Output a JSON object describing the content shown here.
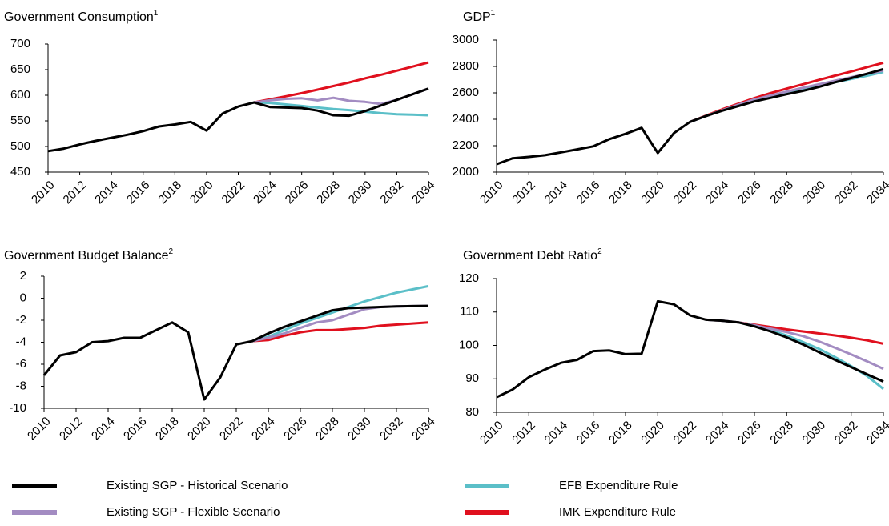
{
  "chart_data": [
    {
      "type": "line",
      "title": "Government Consumption",
      "title_footnote": "1",
      "x": [
        2010,
        2011,
        2012,
        2013,
        2014,
        2015,
        2016,
        2017,
        2018,
        2019,
        2020,
        2021,
        2022,
        2023,
        2024,
        2025,
        2026,
        2027,
        2028,
        2029,
        2030,
        2031,
        2032,
        2033,
        2034
      ],
      "xlim": [
        2010,
        2034
      ],
      "xticks": [
        2010,
        2012,
        2014,
        2016,
        2018,
        2020,
        2022,
        2024,
        2026,
        2028,
        2030,
        2032,
        2034
      ],
      "ylim": [
        450,
        700
      ],
      "yticks": [
        450,
        500,
        550,
        600,
        650,
        700
      ],
      "series": [
        {
          "name": "Existing SGP - Historical Scenario",
          "color": "#000000",
          "values": [
            491,
            496,
            504,
            511,
            517,
            523,
            530,
            539,
            543,
            548,
            531,
            564,
            578,
            586,
            577,
            576,
            575,
            570,
            561,
            560,
            569,
            580,
            591,
            602,
            613
          ]
        },
        {
          "name": "Existing SGP - Flexible Scenario",
          "color": "#a38cc2",
          "values": [
            null,
            null,
            null,
            null,
            null,
            null,
            null,
            null,
            null,
            null,
            null,
            null,
            null,
            586,
            590,
            593,
            594,
            590,
            595,
            589,
            587,
            583,
            591,
            602,
            613
          ]
        },
        {
          "name": "EFB Expenditure Rule",
          "color": "#5bbfc8",
          "values": [
            null,
            null,
            null,
            null,
            null,
            null,
            null,
            null,
            null,
            null,
            null,
            null,
            null,
            586,
            585,
            582,
            579,
            576,
            573,
            571,
            568,
            565,
            563,
            562,
            561
          ]
        },
        {
          "name": "IMK Expenditure Rule",
          "color": "#e0101e",
          "values": [
            null,
            null,
            null,
            null,
            null,
            null,
            null,
            null,
            null,
            null,
            null,
            null,
            null,
            586,
            592,
            598,
            604,
            611,
            618,
            625,
            633,
            640,
            648,
            656,
            664
          ]
        }
      ]
    },
    {
      "type": "line",
      "title": "GDP",
      "title_footnote": "1",
      "x": [
        2010,
        2011,
        2012,
        2013,
        2014,
        2015,
        2016,
        2017,
        2018,
        2019,
        2020,
        2021,
        2022,
        2023,
        2024,
        2025,
        2026,
        2027,
        2028,
        2029,
        2030,
        2031,
        2032,
        2033,
        2034
      ],
      "xlim": [
        2010,
        2034
      ],
      "xticks": [
        2010,
        2012,
        2014,
        2016,
        2018,
        2020,
        2022,
        2024,
        2026,
        2028,
        2030,
        2032,
        2034
      ],
      "ylim": [
        2000,
        3000
      ],
      "yticks": [
        2000,
        2200,
        2400,
        2600,
        2800,
        3000
      ],
      "series": [
        {
          "color": "#000000",
          "values": [
            2060,
            2105,
            2115,
            2128,
            2150,
            2172,
            2195,
            2250,
            2290,
            2335,
            2145,
            2295,
            2380,
            2425,
            2465,
            2500,
            2535,
            2562,
            2590,
            2615,
            2645,
            2680,
            2712,
            2745,
            2780
          ]
        },
        {
          "color": "#a38cc2",
          "values": [
            null,
            null,
            null,
            null,
            null,
            null,
            null,
            null,
            null,
            null,
            null,
            null,
            2380,
            2425,
            2468,
            2510,
            2550,
            2580,
            2610,
            2638,
            2665,
            2692,
            2718,
            2745,
            2770
          ]
        },
        {
          "color": "#5bbfc8",
          "values": [
            null,
            null,
            null,
            null,
            null,
            null,
            null,
            null,
            null,
            null,
            null,
            null,
            2380,
            2425,
            2468,
            2508,
            2545,
            2575,
            2602,
            2628,
            2655,
            2680,
            2705,
            2730,
            2758
          ]
        },
        {
          "color": "#e0101e",
          "values": [
            null,
            null,
            null,
            null,
            null,
            null,
            null,
            null,
            null,
            null,
            null,
            null,
            2380,
            2428,
            2475,
            2518,
            2560,
            2598,
            2632,
            2665,
            2698,
            2730,
            2762,
            2795,
            2828
          ]
        }
      ]
    },
    {
      "type": "line",
      "title": "Government Budget Balance",
      "title_footnote": "2",
      "x": [
        2010,
        2011,
        2012,
        2013,
        2014,
        2015,
        2016,
        2017,
        2018,
        2019,
        2020,
        2021,
        2022,
        2023,
        2024,
        2025,
        2026,
        2027,
        2028,
        2029,
        2030,
        2031,
        2032,
        2033,
        2034
      ],
      "xlim": [
        2010,
        2034
      ],
      "xticks": [
        2010,
        2012,
        2014,
        2016,
        2018,
        2020,
        2022,
        2024,
        2026,
        2028,
        2030,
        2032,
        2034
      ],
      "ylim": [
        -10,
        2
      ],
      "yticks": [
        -10,
        -8,
        -6,
        -4,
        -2,
        0,
        2
      ],
      "series": [
        {
          "color": "#000000",
          "values": [
            -7.0,
            -5.2,
            -4.9,
            -4.0,
            -3.9,
            -3.6,
            -3.6,
            -2.9,
            -2.2,
            -3.1,
            -9.2,
            -7.2,
            -4.2,
            -3.9,
            -3.2,
            -2.6,
            -2.1,
            -1.6,
            -1.1,
            -0.9,
            -0.85,
            -0.8,
            -0.75,
            -0.72,
            -0.7
          ]
        },
        {
          "color": "#a38cc2",
          "values": [
            null,
            null,
            null,
            null,
            null,
            null,
            null,
            null,
            null,
            null,
            null,
            null,
            null,
            -3.9,
            -3.6,
            -3.2,
            -2.7,
            -2.2,
            -2.0,
            -1.5,
            -1.0,
            -0.8,
            -0.75,
            -0.72,
            -0.7
          ]
        },
        {
          "color": "#5bbfc8",
          "values": [
            null,
            null,
            null,
            null,
            null,
            null,
            null,
            null,
            null,
            null,
            null,
            null,
            null,
            -3.9,
            -3.5,
            -2.9,
            -2.3,
            -1.8,
            -1.3,
            -0.8,
            -0.3,
            0.1,
            0.5,
            0.8,
            1.1
          ]
        },
        {
          "color": "#e0101e",
          "values": [
            null,
            null,
            null,
            null,
            null,
            null,
            null,
            null,
            null,
            null,
            null,
            null,
            null,
            -3.9,
            -3.8,
            -3.4,
            -3.1,
            -2.9,
            -2.9,
            -2.8,
            -2.7,
            -2.5,
            -2.4,
            -2.3,
            -2.2
          ]
        }
      ]
    },
    {
      "type": "line",
      "title": "Government Debt Ratio",
      "title_footnote": "2",
      "x": [
        2010,
        2011,
        2012,
        2013,
        2014,
        2015,
        2016,
        2017,
        2018,
        2019,
        2020,
        2021,
        2022,
        2023,
        2024,
        2025,
        2026,
        2027,
        2028,
        2029,
        2030,
        2031,
        2032,
        2033,
        2034
      ],
      "xlim": [
        2010,
        2034
      ],
      "xticks": [
        2010,
        2012,
        2014,
        2016,
        2018,
        2020,
        2022,
        2024,
        2026,
        2028,
        2030,
        2032,
        2034
      ],
      "ylim": [
        80,
        120
      ],
      "yticks": [
        80,
        90,
        100,
        110,
        120
      ],
      "series": [
        {
          "color": "#000000",
          "values": [
            84.5,
            86.8,
            90.5,
            92.8,
            94.8,
            95.7,
            98.3,
            98.5,
            97.4,
            97.5,
            113.2,
            112.3,
            109.0,
            107.7,
            107.4,
            106.9,
            105.7,
            104.2,
            102.4,
            100.3,
            98.0,
            95.7,
            93.5,
            91.3,
            89.2
          ]
        },
        {
          "color": "#a38cc2",
          "values": [
            null,
            null,
            null,
            null,
            null,
            null,
            null,
            null,
            null,
            null,
            null,
            null,
            null,
            107.7,
            107.4,
            106.9,
            106.0,
            105.0,
            104.0,
            102.8,
            101.2,
            99.3,
            97.3,
            95.2,
            93.0
          ]
        },
        {
          "color": "#5bbfc8",
          "values": [
            null,
            null,
            null,
            null,
            null,
            null,
            null,
            null,
            null,
            null,
            null,
            null,
            null,
            107.7,
            107.4,
            106.9,
            105.8,
            104.5,
            103.0,
            101.0,
            99.0,
            96.5,
            93.8,
            90.8,
            87.0
          ]
        },
        {
          "color": "#e0101e",
          "values": [
            null,
            null,
            null,
            null,
            null,
            null,
            null,
            null,
            null,
            null,
            null,
            null,
            null,
            107.7,
            107.4,
            106.9,
            106.2,
            105.5,
            104.8,
            104.2,
            103.6,
            103.0,
            102.3,
            101.5,
            100.5
          ]
        }
      ]
    }
  ]
}
